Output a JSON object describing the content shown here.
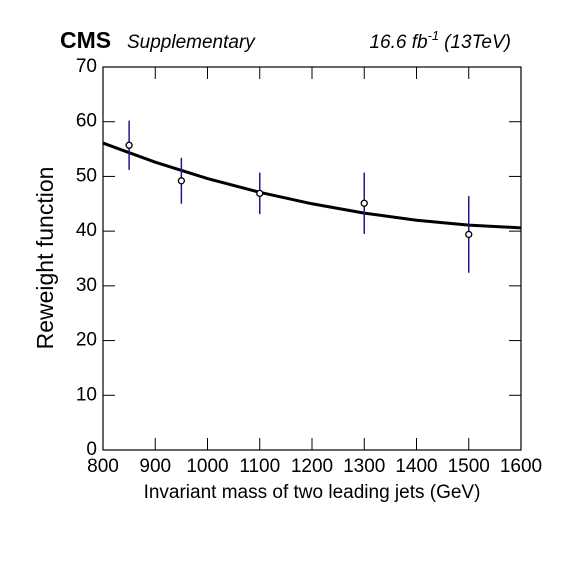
{
  "chart_data": {
    "type": "errorbar",
    "experiment": "CMS",
    "label": "Supplementary",
    "lumi": {
      "text": "16.6 fb",
      "sup": "-1",
      "suffix": "(13TeV)"
    },
    "x_label": "Invariant mass of two leading jets (GeV)",
    "y_label": "Reweight function",
    "xlim": [
      800,
      1600
    ],
    "xticks": [
      800,
      900,
      1000,
      1100,
      1200,
      1300,
      1400,
      1500,
      1600
    ],
    "ylim": [
      0,
      70
    ],
    "yticks": [
      0,
      10,
      20,
      30,
      40,
      50,
      60,
      70
    ],
    "series": [
      {
        "x": [
          850,
          950,
          1100,
          1300,
          1500
        ],
        "values": [
          55.7,
          49.2,
          46.9,
          45.1,
          39.4
        ],
        "errors": [
          4.5,
          4.2,
          3.8,
          5.6,
          7.0
        ],
        "color": "#000000",
        "error_color": "#1a1a8c"
      }
    ],
    "fit": {
      "x": [
        800,
        900,
        1000,
        1100,
        1200,
        1300,
        1400,
        1500,
        1600
      ],
      "values": [
        56.1,
        52.6,
        49.6,
        47.1,
        45.0,
        43.3,
        42.0,
        41.1,
        40.6
      ],
      "color": "#000000"
    }
  }
}
